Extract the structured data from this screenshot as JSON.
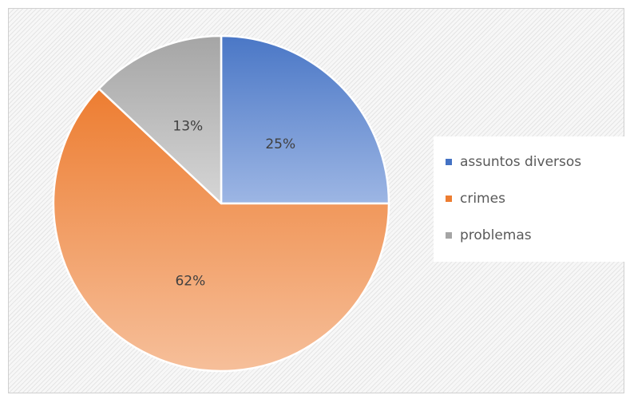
{
  "chart_data": {
    "type": "pie",
    "title": "",
    "categories": [
      "assuntos diversos",
      "crimes",
      "problemas"
    ],
    "values": [
      25,
      62,
      13
    ],
    "value_labels": [
      "25%",
      "62%",
      "13%"
    ],
    "start_angle_deg": 0,
    "direction": "clockwise",
    "legend_position": "right",
    "colors": [
      {
        "top": "#4a77c6",
        "bottom": "#9db6e4"
      },
      {
        "top": "#ed7d31",
        "bottom": "#f6bf9a"
      },
      {
        "top": "#a5a5a5",
        "bottom": "#d6d6d6"
      }
    ],
    "legend_colors": [
      "#4472c4",
      "#ed7d31",
      "#a5a5a5"
    ]
  }
}
